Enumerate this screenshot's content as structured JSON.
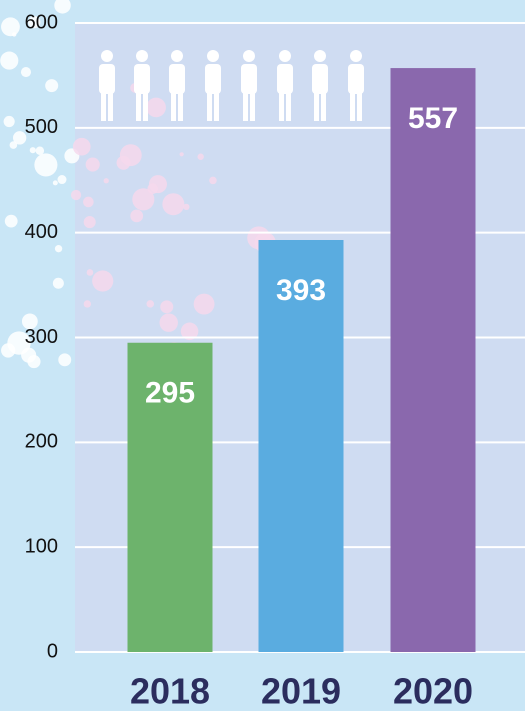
{
  "chart_data": {
    "type": "bar",
    "categories": [
      "2018",
      "2019",
      "2020"
    ],
    "values": [
      295,
      393,
      557
    ],
    "colors": [
      "#6db36c",
      "#5aace0",
      "#8a68ad"
    ],
    "ylim": [
      0,
      600
    ],
    "yticks": [
      0,
      100,
      200,
      300,
      400,
      500,
      600
    ],
    "grid": true
  }
}
